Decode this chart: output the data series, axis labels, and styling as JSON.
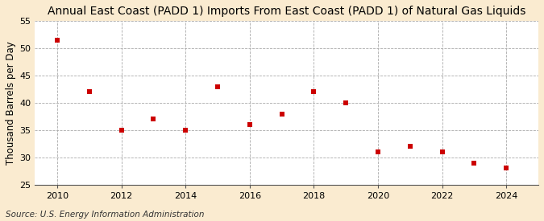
{
  "title": "Annual East Coast (PADD 1) Imports From East Coast (PADD 1) of Natural Gas Liquids",
  "ylabel": "Thousand Barrels per Day",
  "source": "Source: U.S. Energy Information Administration",
  "years": [
    2010,
    2011,
    2012,
    2013,
    2014,
    2015,
    2016,
    2017,
    2018,
    2019,
    2020,
    2021,
    2022,
    2023,
    2024
  ],
  "values": [
    51.5,
    42.0,
    35.0,
    37.0,
    35.0,
    43.0,
    36.0,
    38.0,
    42.0,
    40.0,
    31.0,
    32.0,
    31.0,
    29.0,
    28.0
  ],
  "ylim": [
    25,
    55
  ],
  "yticks": [
    25,
    30,
    35,
    40,
    45,
    50,
    55
  ],
  "xlim": [
    2009.3,
    2025.0
  ],
  "xticks": [
    2010,
    2012,
    2014,
    2016,
    2018,
    2020,
    2022,
    2024
  ],
  "marker_color": "#cc0000",
  "marker": "s",
  "marker_size": 4.5,
  "fig_bg_color": "#faebd0",
  "plot_bg_color": "#ffffff",
  "grid_color": "#aaaaaa",
  "title_fontsize": 10,
  "label_fontsize": 8.5,
  "tick_fontsize": 8,
  "source_fontsize": 7.5
}
